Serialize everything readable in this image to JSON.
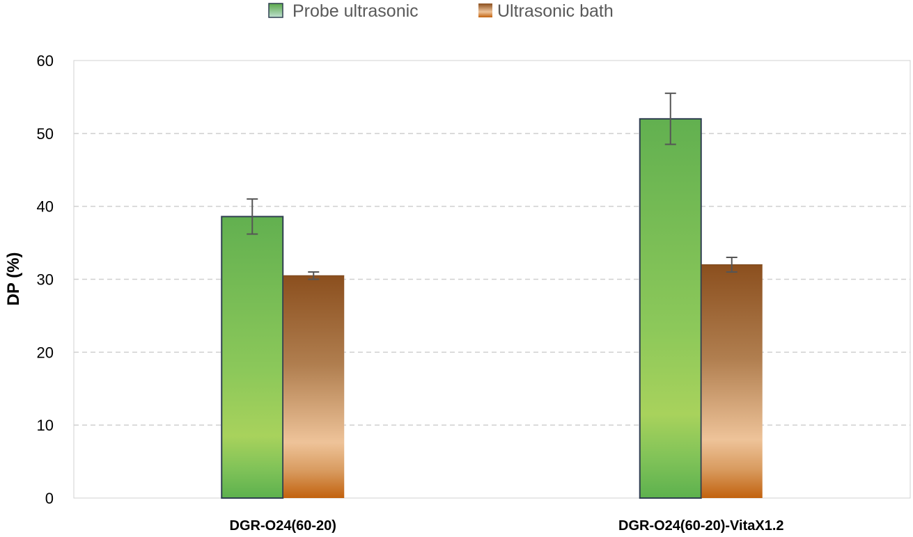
{
  "chart_data": {
    "type": "bar",
    "title": "",
    "xlabel": "",
    "ylabel": "DP (%)",
    "ylim": [
      0,
      60
    ],
    "yticks": [
      0,
      10,
      20,
      30,
      40,
      50,
      60
    ],
    "grid": true,
    "legend_position": "top-center",
    "categories": [
      "DGR-O24(60-20)",
      "DGR-O24(60-20)-VitaX1.2"
    ],
    "series": [
      {
        "name": "Probe ultrasonic",
        "values": [
          38.6,
          52.0
        ],
        "error": [
          2.4,
          3.5
        ],
        "color": "#6ab04c"
      },
      {
        "name": "Ultrasonic bath",
        "values": [
          30.5,
          32.0
        ],
        "error": [
          0.5,
          1.0
        ],
        "color": "#8b4f1e"
      }
    ]
  }
}
